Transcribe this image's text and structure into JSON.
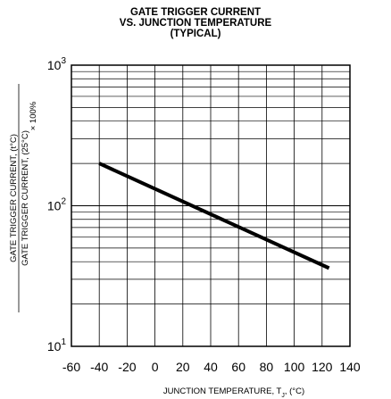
{
  "chart_data": {
    "type": "line",
    "title_lines": [
      "GATE TRIGGER CURRENT",
      "VS. JUNCTION TEMPERATURE",
      "(TYPICAL)"
    ],
    "xlabel": "JUNCTION TEMPERATURE, T",
    "xlabel_sub": "J",
    "xlabel_unit": ", (°C)",
    "ylabel_numerator": "GATE TRIGGER CURRENT, (t°C)",
    "ylabel_denominator": "GATE TRIGGER CURRENT, (25°C)",
    "ylabel_multiplier": "× 100%",
    "xlim": [
      -60,
      140
    ],
    "ylim": [
      10,
      1000
    ],
    "yscale": "log",
    "x_ticks": [
      "-60",
      "-40",
      "-20",
      "0",
      "20",
      "40",
      "60",
      "80",
      "100",
      "120",
      "140"
    ],
    "y_ticks": [
      {
        "base": "10",
        "exp": "1"
      },
      {
        "base": "10",
        "exp": "2"
      },
      {
        "base": "10",
        "exp": "3"
      }
    ],
    "grid": true,
    "series": [
      {
        "x": [
          -40,
          125
        ],
        "y": [
          200,
          36
        ]
      }
    ]
  }
}
